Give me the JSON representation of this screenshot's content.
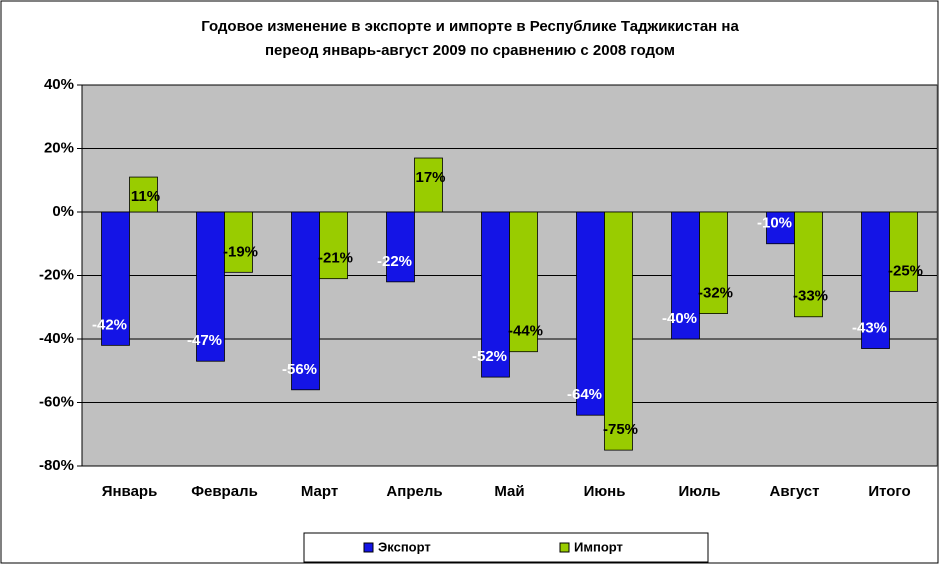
{
  "chart_data": {
    "type": "bar",
    "title": [
      "Годовое изменение в экспорте и импорте в Республике Таджикистан на",
      "переод январь-август 2009 по сравнению с 2008 годом"
    ],
    "categories": [
      "Январь",
      "Февраль",
      "Март",
      "Апрель",
      "Май",
      "Июнь",
      "Июль",
      "Август",
      "Итого"
    ],
    "series": [
      {
        "name": "Экспорт",
        "color": "#1414e6",
        "label_color": "#ffffff",
        "values": [
          -42,
          -47,
          -56,
          -22,
          -52,
          -64,
          -40,
          -10,
          -43
        ],
        "value_labels": [
          "-42%",
          "-47%",
          "-56%",
          "-22%",
          "-52%",
          "-64%",
          "-40%",
          "-10%",
          "-43%"
        ]
      },
      {
        "name": "Импорт",
        "color": "#99cc00",
        "label_color": "#000000",
        "values": [
          11,
          -19,
          -21,
          17,
          -44,
          -75,
          -32,
          -33,
          -25
        ],
        "value_labels": [
          "11%",
          "-19%",
          "-21%",
          "17%",
          "-44%",
          "-75%",
          "-32%",
          "-33%",
          "-25%"
        ]
      }
    ],
    "ylim": [
      -80,
      40
    ],
    "yticks": [
      {
        "value": -80,
        "label": "-80%"
      },
      {
        "value": -60,
        "label": "-60%"
      },
      {
        "value": -40,
        "label": "-40%"
      },
      {
        "value": -20,
        "label": "-20%"
      },
      {
        "value": 0,
        "label": "0%"
      },
      {
        "value": 20,
        "label": "20%"
      },
      {
        "value": 40,
        "label": "40%"
      }
    ],
    "grid": true,
    "legend": "bottom"
  }
}
